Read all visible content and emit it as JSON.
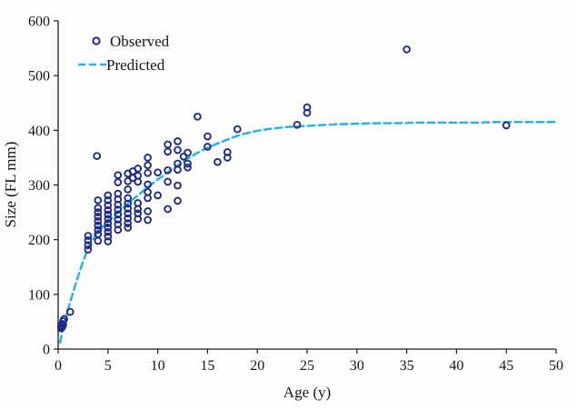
{
  "chart_data": {
    "type": "scatter",
    "title": "",
    "xlabel": "Age (y)",
    "ylabel": "Size (FL mm)",
    "xlim": [
      0,
      50
    ],
    "ylim": [
      0,
      600
    ],
    "xticks": [
      0,
      5,
      10,
      15,
      20,
      25,
      30,
      35,
      40,
      45,
      50
    ],
    "yticks": [
      0,
      100,
      200,
      300,
      400,
      500,
      600
    ],
    "grid": false,
    "legend_position": "upper-left-inside",
    "series": [
      {
        "name": "Observed",
        "type": "scatter",
        "marker": "open-circle",
        "color": "#1f2a87",
        "points": [
          [
            0.3,
            38
          ],
          [
            0.3,
            42
          ],
          [
            0.4,
            40
          ],
          [
            0.4,
            46
          ],
          [
            0.5,
            44
          ],
          [
            0.5,
            51
          ],
          [
            0.6,
            55
          ],
          [
            1.2,
            68
          ],
          [
            3,
            207
          ],
          [
            3,
            199
          ],
          [
            3,
            190
          ],
          [
            3,
            182
          ],
          [
            3.9,
            353
          ],
          [
            4,
            272
          ],
          [
            4,
            258
          ],
          [
            4,
            250
          ],
          [
            4,
            242
          ],
          [
            4,
            234
          ],
          [
            4,
            226
          ],
          [
            4,
            218
          ],
          [
            4,
            210
          ],
          [
            4,
            198
          ],
          [
            5,
            281
          ],
          [
            5,
            272
          ],
          [
            5,
            263
          ],
          [
            5,
            254
          ],
          [
            5,
            246
          ],
          [
            5,
            238
          ],
          [
            5,
            230
          ],
          [
            5,
            222
          ],
          [
            5,
            214
          ],
          [
            5,
            206
          ],
          [
            5,
            197
          ],
          [
            6,
            318
          ],
          [
            6,
            305
          ],
          [
            6,
            284
          ],
          [
            6,
            274
          ],
          [
            6,
            264
          ],
          [
            6,
            255
          ],
          [
            6,
            246
          ],
          [
            6,
            237
          ],
          [
            6,
            228
          ],
          [
            6,
            218
          ],
          [
            7,
            321
          ],
          [
            7,
            307
          ],
          [
            7,
            292
          ],
          [
            7,
            276
          ],
          [
            7,
            266
          ],
          [
            7,
            257
          ],
          [
            7,
            248
          ],
          [
            7,
            239
          ],
          [
            7,
            230
          ],
          [
            7,
            222
          ],
          [
            7.5,
            325
          ],
          [
            7.5,
            313
          ],
          [
            8,
            330
          ],
          [
            8,
            317
          ],
          [
            8,
            306
          ],
          [
            8,
            267
          ],
          [
            8,
            256
          ],
          [
            8,
            248
          ],
          [
            8,
            238
          ],
          [
            9,
            350
          ],
          [
            9,
            336
          ],
          [
            9,
            322
          ],
          [
            9,
            301
          ],
          [
            9,
            287
          ],
          [
            9,
            276
          ],
          [
            9,
            252
          ],
          [
            9,
            236
          ],
          [
            10,
            323
          ],
          [
            10,
            281
          ],
          [
            11,
            374
          ],
          [
            11,
            361
          ],
          [
            11,
            327
          ],
          [
            11,
            306
          ],
          [
            11,
            256
          ],
          [
            12,
            380
          ],
          [
            12,
            364
          ],
          [
            12,
            339
          ],
          [
            12,
            328
          ],
          [
            12,
            299
          ],
          [
            12,
            271
          ],
          [
            12.6,
            352
          ],
          [
            13,
            359
          ],
          [
            13,
            339
          ],
          [
            13,
            332
          ],
          [
            14,
            425
          ],
          [
            15,
            389
          ],
          [
            15,
            370
          ],
          [
            16,
            342
          ],
          [
            17,
            360
          ],
          [
            17,
            350
          ],
          [
            18,
            402
          ],
          [
            24,
            410
          ],
          [
            25,
            442
          ],
          [
            25,
            432
          ],
          [
            35,
            548
          ],
          [
            45,
            409
          ]
        ]
      },
      {
        "name": "Predicted",
        "type": "line",
        "style": "dashed",
        "color": "#2ab1e2",
        "points": [
          [
            0.2,
            12
          ],
          [
            0.5,
            40
          ],
          [
            1,
            73
          ],
          [
            1.5,
            104
          ],
          [
            2,
            133
          ],
          [
            2.5,
            160
          ],
          [
            3,
            185
          ],
          [
            3.5,
            201
          ],
          [
            4,
            215
          ],
          [
            5,
            233
          ],
          [
            6,
            250
          ],
          [
            7,
            266
          ],
          [
            8,
            281
          ],
          [
            9,
            296
          ],
          [
            10,
            310
          ],
          [
            11,
            323
          ],
          [
            12,
            336
          ],
          [
            13,
            348
          ],
          [
            14,
            359
          ],
          [
            15,
            368
          ],
          [
            16,
            376
          ],
          [
            17,
            383
          ],
          [
            18,
            390
          ],
          [
            19,
            395
          ],
          [
            20,
            399
          ],
          [
            21,
            402
          ],
          [
            22,
            404
          ],
          [
            23,
            406
          ],
          [
            24,
            407
          ],
          [
            25,
            408
          ],
          [
            26,
            409
          ],
          [
            28,
            411
          ],
          [
            30,
            412
          ],
          [
            32,
            413
          ],
          [
            34,
            413
          ],
          [
            36,
            414
          ],
          [
            38,
            414
          ],
          [
            40,
            414
          ],
          [
            42,
            414
          ],
          [
            44,
            415
          ],
          [
            46,
            415
          ],
          [
            48,
            415
          ],
          [
            50,
            415
          ]
        ]
      }
    ]
  },
  "colors": {
    "axis": "#1a1a1a",
    "tick_label": "#161616",
    "background": "#fefefe",
    "observed_marker": "#1f2a87",
    "predicted_line": "#2ab1e2"
  }
}
